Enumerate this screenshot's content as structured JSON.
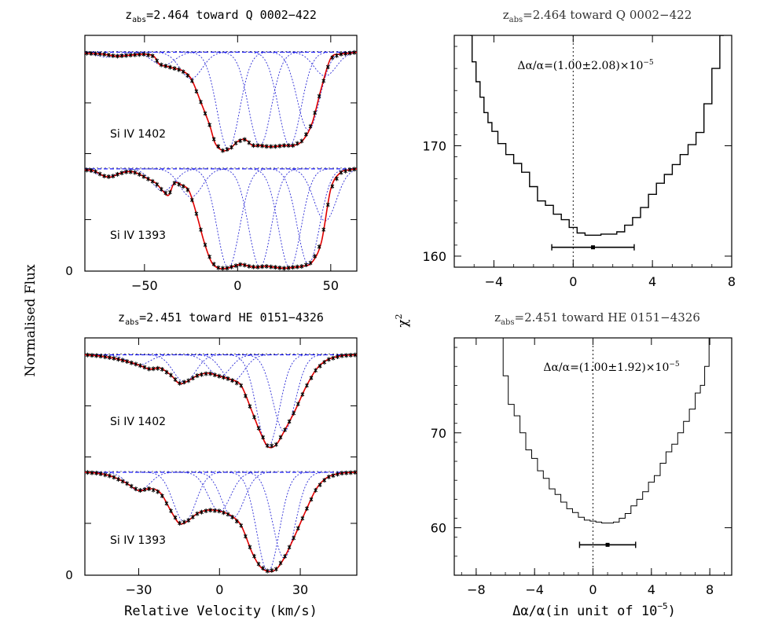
{
  "shared": {
    "ylabel_left": "Normalised Flux",
    "ylabel_right": "χ",
    "ylabel_right_sup": "2",
    "xlabel_left": "Relative Velocity (km/s)",
    "xlabel_right_main": "Δα/α(in unit of 10",
    "xlabel_right_sup": "−5",
    "xlabel_right_close": ")"
  },
  "panels": {
    "tl": {
      "title_z": "z",
      "title_sub": "abs",
      "title_rest": "=2.464 toward Q 0002−422",
      "zero_label": "0",
      "line_labels": [
        "Si IV 1402",
        "Si IV 1393"
      ]
    },
    "bl": {
      "title_z": "z",
      "title_sub": "abs",
      "title_rest": "=2.451 toward HE 0151−4326",
      "zero_label": "0",
      "line_labels": [
        "Si IV 1402",
        "Si IV 1393"
      ]
    },
    "tr": {
      "title_z": "z",
      "title_sub": "abs",
      "title_rest": "=2.464 toward Q 0002−422",
      "annotation_main": "Δα/α=(1.00±2.08)×10",
      "annotation_sup": "−5"
    },
    "br": {
      "title_z": "z",
      "title_sub": "abs",
      "title_rest": "=2.451 toward HE 0151−4326",
      "annotation_main": "Δα/α=(1.00±1.92)×10",
      "annotation_sup": "−5"
    }
  },
  "chart_data": [
    {
      "type": "line",
      "title": "zabs=2.464 toward Q 0002−422",
      "ylabel": "Normalised Flux",
      "xlim": [
        -82,
        64
      ],
      "xticks": [
        -50,
        0,
        50
      ],
      "yticks": [
        0
      ],
      "series": [
        {
          "name": "Si IV 1402",
          "offset": 1.15,
          "continuum": 1.0,
          "x": [
            -82,
            -72,
            -65,
            -58,
            -50,
            -45,
            -42,
            -38,
            -34,
            -30,
            -25,
            -20,
            -15,
            -12,
            -8,
            -4,
            0,
            4,
            8,
            12,
            16,
            20,
            25,
            30,
            35,
            40,
            45,
            50,
            55,
            60,
            64
          ],
          "flux": [
            0.99,
            0.98,
            0.96,
            0.97,
            0.98,
            0.96,
            0.88,
            0.86,
            0.84,
            0.82,
            0.74,
            0.52,
            0.28,
            0.1,
            0.03,
            0.05,
            0.12,
            0.14,
            0.08,
            0.08,
            0.07,
            0.07,
            0.08,
            0.08,
            0.13,
            0.3,
            0.65,
            0.94,
            0.98,
            0.99,
            1.0
          ]
        },
        {
          "name": "Si IV 1393",
          "offset": 0.0,
          "continuum": 1.0,
          "x": [
            -82,
            -77,
            -72,
            -68,
            -64,
            -60,
            -56,
            -52,
            -48,
            -44,
            -40,
            -37,
            -34,
            -30,
            -26,
            -22,
            -18,
            -14,
            -10,
            -6,
            -2,
            2,
            6,
            10,
            15,
            20,
            25,
            30,
            35,
            40,
            45,
            50,
            55,
            60,
            64
          ],
          "flux": [
            0.99,
            0.98,
            0.93,
            0.92,
            0.95,
            0.97,
            0.97,
            0.94,
            0.9,
            0.86,
            0.78,
            0.74,
            0.86,
            0.84,
            0.78,
            0.55,
            0.28,
            0.08,
            0.02,
            0.02,
            0.04,
            0.06,
            0.04,
            0.03,
            0.04,
            0.03,
            0.02,
            0.03,
            0.04,
            0.08,
            0.28,
            0.8,
            0.96,
            0.99,
            1.0
          ]
        }
      ],
      "components_v": [
        -70,
        -40,
        -25,
        -5,
        12,
        28,
        38,
        47
      ]
    },
    {
      "type": "line",
      "title": "zabs=2.451 toward HE 0151−4326",
      "ylabel": "Normalised Flux",
      "xlabel": "Relative Velocity (km/s)",
      "xlim": [
        -50,
        51
      ],
      "xticks": [
        -30,
        0,
        30
      ],
      "yticks": [
        0
      ],
      "series": [
        {
          "name": "Si IV 1402",
          "offset": 1.15,
          "continuum": 1.0,
          "x": [
            -50,
            -45,
            -40,
            -35,
            -30,
            -26,
            -22,
            -18,
            -15,
            -12,
            -8,
            -4,
            0,
            4,
            8,
            12,
            15,
            18,
            21,
            24,
            28,
            32,
            36,
            40,
            45,
            51
          ],
          "flux": [
            1.0,
            0.99,
            0.97,
            0.94,
            0.9,
            0.86,
            0.87,
            0.8,
            0.72,
            0.74,
            0.8,
            0.82,
            0.79,
            0.76,
            0.7,
            0.45,
            0.25,
            0.1,
            0.12,
            0.25,
            0.45,
            0.68,
            0.86,
            0.95,
            0.99,
            1.0
          ]
        },
        {
          "name": "Si IV 1393",
          "offset": 0.0,
          "continuum": 1.0,
          "x": [
            -50,
            -45,
            -40,
            -35,
            -30,
            -26,
            -22,
            -18,
            -15,
            -12,
            -8,
            -4,
            0,
            4,
            8,
            12,
            15,
            18,
            21,
            24,
            28,
            32,
            36,
            40,
            45,
            51
          ],
          "flux": [
            1.0,
            0.99,
            0.96,
            0.9,
            0.82,
            0.84,
            0.8,
            0.62,
            0.5,
            0.52,
            0.6,
            0.63,
            0.62,
            0.58,
            0.48,
            0.22,
            0.08,
            0.03,
            0.05,
            0.16,
            0.38,
            0.62,
            0.84,
            0.95,
            0.99,
            1.0
          ]
        }
      ],
      "components_v": [
        -30,
        -13,
        0,
        5,
        18,
        24
      ]
    },
    {
      "type": "line",
      "title": "zabs=2.464 toward Q 0002−422",
      "ylabel": "χ2",
      "xlim": [
        -6,
        8
      ],
      "ylim": [
        159,
        180
      ],
      "xticks": [
        -4,
        0,
        4,
        8
      ],
      "yticks": [
        160,
        170
      ],
      "best_fit": 1.0,
      "error_range": [
        -1.08,
        3.08
      ],
      "error_bar_y": 160.8,
      "x": [
        -5.2,
        -5.0,
        -4.8,
        -4.6,
        -4.4,
        -4.2,
        -4.0,
        -3.6,
        -3.2,
        -2.8,
        -2.4,
        -2.0,
        -1.6,
        -1.2,
        -0.8,
        -0.4,
        0.0,
        0.4,
        0.8,
        1.2,
        1.6,
        2.0,
        2.4,
        2.8,
        3.2,
        3.6,
        4.0,
        4.4,
        4.8,
        5.2,
        5.6,
        6.0,
        6.4,
        6.8,
        7.2,
        7.6
      ],
      "y": [
        180,
        177.6,
        175.8,
        174.4,
        173.0,
        172.1,
        171.3,
        170.2,
        169.2,
        168.4,
        167.6,
        166.3,
        165.0,
        164.6,
        163.8,
        163.3,
        162.6,
        162.1,
        161.9,
        161.9,
        162.0,
        162.0,
        162.2,
        162.8,
        163.5,
        164.4,
        165.6,
        166.6,
        167.4,
        168.3,
        169.2,
        170.1,
        171.2,
        173.8,
        177.0,
        180
      ]
    },
    {
      "type": "line",
      "title": "zabs=2.451 toward HE 0151−4326",
      "ylabel": "χ2",
      "xlabel": "Δα/α(in unit of 10−5)",
      "xlim": [
        -9.5,
        9.5
      ],
      "ylim": [
        55,
        80
      ],
      "xticks": [
        -8,
        -4,
        0,
        4,
        8
      ],
      "yticks": [
        60,
        70
      ],
      "best_fit": 1.0,
      "error_range": [
        -0.92,
        2.92
      ],
      "error_bar_y": 58.2,
      "x": [
        -6.3,
        -6.0,
        -5.6,
        -5.2,
        -4.8,
        -4.4,
        -4.0,
        -3.6,
        -3.2,
        -2.8,
        -2.4,
        -2.0,
        -1.6,
        -1.2,
        -0.8,
        -0.4,
        0.0,
        0.4,
        0.8,
        1.2,
        1.6,
        2.0,
        2.4,
        2.8,
        3.2,
        3.6,
        4.0,
        4.4,
        4.8,
        5.2,
        5.6,
        6.0,
        6.4,
        6.8,
        7.2,
        7.5,
        7.8,
        8.1
      ],
      "y": [
        80,
        76.0,
        73.0,
        71.8,
        70.0,
        68.2,
        67.3,
        66.0,
        65.2,
        64.1,
        63.5,
        62.7,
        62.0,
        61.6,
        61.1,
        60.8,
        60.7,
        60.6,
        60.5,
        60.5,
        60.6,
        61.0,
        61.5,
        62.3,
        63.0,
        63.8,
        64.8,
        65.5,
        66.8,
        68.0,
        68.8,
        70.0,
        71.2,
        72.5,
        74.2,
        75.0,
        77.0,
        80
      ]
    }
  ]
}
